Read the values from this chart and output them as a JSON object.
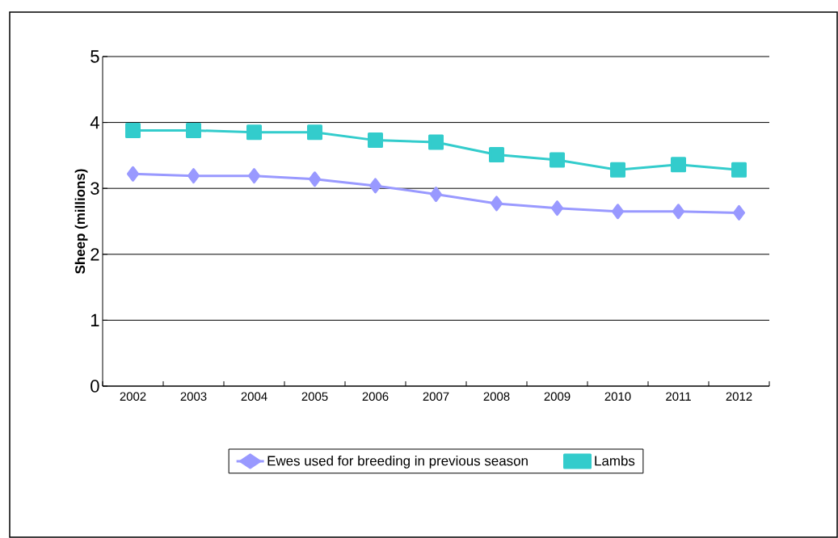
{
  "chart_data": {
    "type": "line",
    "ylabel": "Sheep (millions)",
    "categories": [
      "2002",
      "2003",
      "2004",
      "2005",
      "2006",
      "2007",
      "2008",
      "2009",
      "2010",
      "2011",
      "2012"
    ],
    "series": [
      {
        "name": "Ewes used for breeding in previous season",
        "color": "#9999ff",
        "marker": "diamond",
        "values": [
          3.22,
          3.19,
          3.19,
          3.14,
          3.04,
          2.91,
          2.77,
          2.7,
          2.65,
          2.65,
          2.63
        ]
      },
      {
        "name": "Lambs",
        "color": "#33cccc",
        "marker": "square",
        "values": [
          3.88,
          3.88,
          3.85,
          3.85,
          3.73,
          3.7,
          3.51,
          3.43,
          3.28,
          3.36,
          3.28
        ]
      }
    ],
    "ylim": [
      0,
      5
    ],
    "yticks": [
      0,
      1,
      2,
      3,
      4,
      5
    ],
    "grid": "y",
    "legend": "bottom"
  }
}
